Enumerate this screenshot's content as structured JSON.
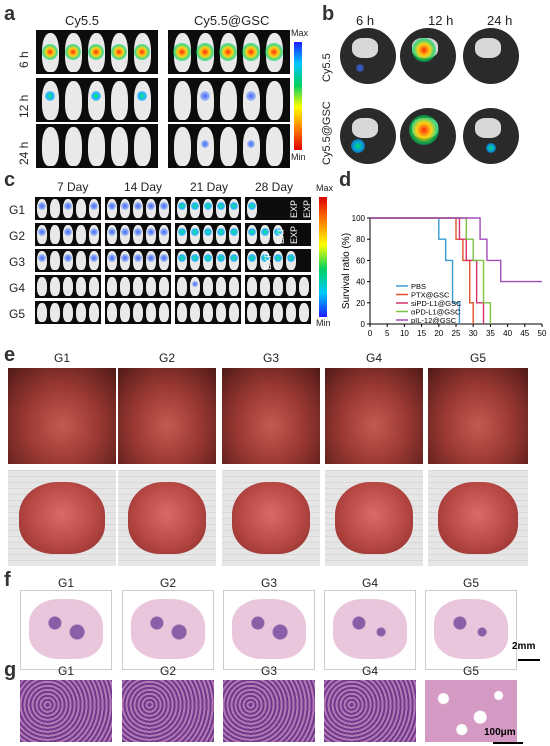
{
  "panel_a": {
    "label": "a",
    "groups": [
      "Cy5.5",
      "Cy5.5@GSC"
    ],
    "rows": [
      "6 h",
      "12 h",
      "24 h"
    ],
    "colorbar": {
      "max": "Max",
      "min": "Min"
    }
  },
  "panel_b": {
    "label": "b",
    "columns": [
      "6 h",
      "12 h",
      "24 h"
    ],
    "rows": [
      "Cy5.5",
      "Cy5.5@GSC"
    ]
  },
  "panel_c": {
    "label": "c",
    "columns": [
      "7 Day",
      "14 Day",
      "21 Day",
      "28 Day"
    ],
    "rows": [
      "G1",
      "G2",
      "G3",
      "G4",
      "G5"
    ],
    "exp_text": "EXP",
    "colorbar": {
      "max": "Max",
      "min": "Min"
    }
  },
  "panel_d": {
    "label": "d",
    "chart_data": {
      "type": "line",
      "xlabel": "Time (day)",
      "ylabel": "Survival ratio (%)",
      "xlim": [
        0,
        50
      ],
      "ylim": [
        0,
        100
      ],
      "xticks": [
        0,
        5,
        10,
        15,
        20,
        25,
        30,
        35,
        40,
        45,
        50
      ],
      "yticks": [
        0,
        20,
        40,
        60,
        80,
        100
      ],
      "legend_position": "bottom-right",
      "series": [
        {
          "name": "PBS",
          "color": "#3a9ad9",
          "x": [
            0,
            20,
            20,
            22,
            22,
            24,
            24,
            26,
            26
          ],
          "y": [
            100,
            100,
            80,
            80,
            60,
            60,
            20,
            20,
            0
          ]
        },
        {
          "name": "PTX@GSC",
          "color": "#e0522a",
          "x": [
            0,
            25,
            25,
            27,
            27,
            29,
            29,
            30,
            30
          ],
          "y": [
            100,
            100,
            80,
            80,
            60,
            60,
            20,
            20,
            0
          ]
        },
        {
          "name": "siPD-L1@GSC",
          "color": "#d8306c",
          "x": [
            0,
            26,
            26,
            28,
            28,
            31,
            31,
            33,
            33
          ],
          "y": [
            100,
            100,
            80,
            80,
            60,
            60,
            20,
            20,
            0
          ]
        },
        {
          "name": "αPD-L1@GSC",
          "color": "#7cc242",
          "x": [
            0,
            28,
            28,
            30,
            30,
            33,
            33,
            35,
            35
          ],
          "y": [
            100,
            100,
            80,
            80,
            60,
            60,
            20,
            20,
            0
          ]
        },
        {
          "name": "pIL-12@GSC",
          "color": "#a24db8",
          "x": [
            0,
            32,
            32,
            34,
            34,
            38,
            38,
            42,
            42,
            50
          ],
          "y": [
            100,
            100,
            80,
            80,
            60,
            60,
            40,
            40,
            40,
            40
          ]
        }
      ]
    }
  },
  "panel_e": {
    "label": "e",
    "columns": [
      "G1",
      "G2",
      "G3",
      "G4",
      "G5"
    ]
  },
  "panel_f": {
    "label": "f",
    "columns": [
      "G1",
      "G2",
      "G3",
      "G4",
      "G5"
    ],
    "scale": "2mm"
  },
  "panel_g": {
    "label": "g",
    "columns": [
      "G1",
      "G2",
      "G3",
      "G4",
      "G5"
    ],
    "scale": "100μm"
  }
}
